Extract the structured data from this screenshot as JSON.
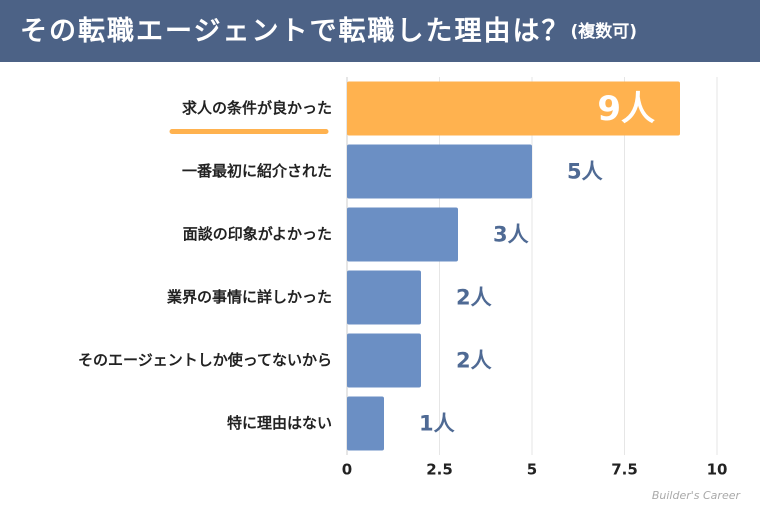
{
  "chart_data": {
    "type": "barh",
    "title": "その転職エージェントで転職した理由は？",
    "subtitle": "(複数可)",
    "categories": [
      "求人の条件が良かった",
      "一番最初に紹介された",
      "面談の印象がよかった",
      "業界の事情に詳しかった",
      "そのエージェントしか使ってないから",
      "特に理由はない"
    ],
    "values": [
      9,
      5,
      3,
      2,
      2,
      1
    ],
    "value_labels": [
      "9人",
      "5人",
      "3人",
      "2人",
      "2人",
      "1人"
    ],
    "color": "#6b8fc4",
    "colors": [
      "#ffb24f",
      "#6b8fc4",
      "#6b8fc4",
      "#6b8fc4",
      "#6b8fc4",
      "#6b8fc4"
    ],
    "xlim": [
      0,
      10
    ],
    "xticks": [
      0,
      2.5,
      5,
      7.5,
      10
    ],
    "grid": true,
    "watermark": "Builder's Career"
  }
}
